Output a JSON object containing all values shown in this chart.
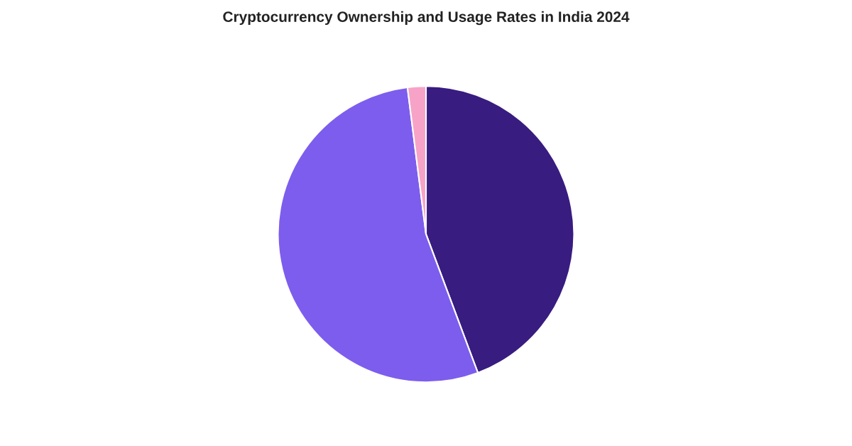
{
  "chart_data": {
    "type": "pie",
    "title": "Cryptocurrency Ownership and Usage Rates in India 2024",
    "categories": [
      null,
      null,
      null
    ],
    "values": [
      44.3,
      53.7,
      2.0
    ],
    "colors": [
      "#381c80",
      "#7d5ded",
      "#f7a3c8"
    ]
  }
}
